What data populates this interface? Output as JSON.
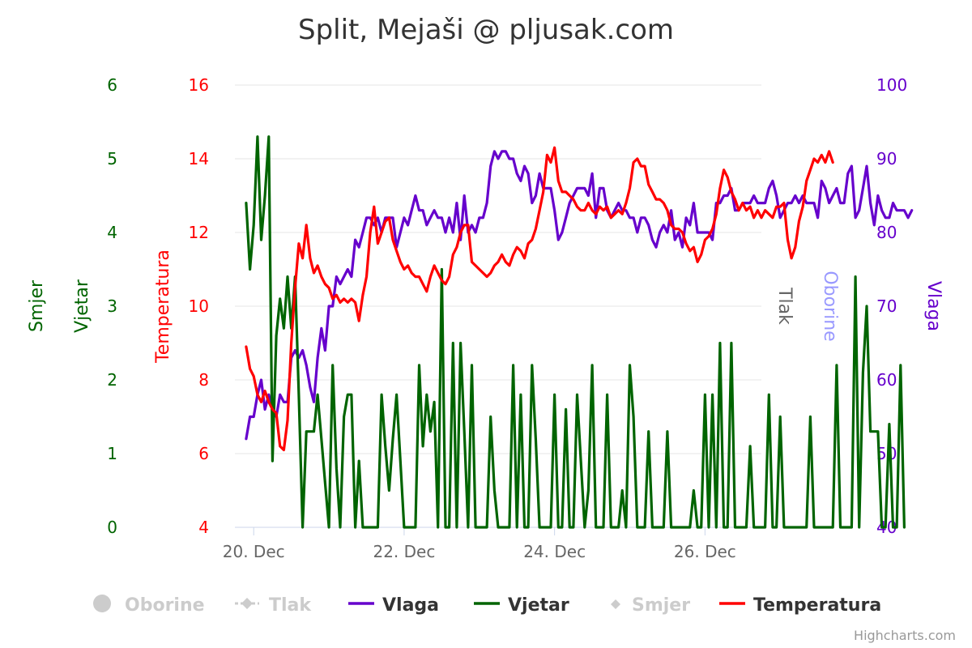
{
  "chart_data": {
    "type": "line",
    "title": "Split, Mejaši @ pljusak.com",
    "credits": "Highcharts.com",
    "x_tick_labels": [
      {
        "label": "20. Dec",
        "day": 20
      },
      {
        "label": "22. Dec",
        "day": 22
      },
      {
        "label": "24. Dec",
        "day": 24
      },
      {
        "label": "26. Dec",
        "day": 26
      }
    ],
    "x_range": [
      19.75,
      26.75
    ],
    "axes": {
      "smjer": {
        "title": "Smjer",
        "min": 0,
        "max": 6,
        "ticks": [
          0,
          1,
          2,
          3,
          4,
          5,
          6
        ],
        "color": "#006400",
        "side": "left"
      },
      "vjetar": {
        "title": "Vjetar",
        "color": "#006400",
        "side": "left"
      },
      "temperatura": {
        "title": "Temperatura",
        "min": 4,
        "max": 16,
        "ticks": [
          4,
          6,
          8,
          10,
          12,
          14,
          16
        ],
        "color": "#ff0000",
        "side": "left"
      },
      "tlak": {
        "title": "Tlak",
        "color": "#666666",
        "side": "right"
      },
      "oborine": {
        "title": "Oborine",
        "color": "#9999ff",
        "side": "right"
      },
      "vlaga": {
        "title": "Vlaga",
        "min": 40,
        "max": 100,
        "ticks": [
          40,
          50,
          60,
          70,
          80,
          90,
          100
        ],
        "color": "#6600cc",
        "side": "right"
      }
    },
    "legend": [
      {
        "name": "Oborine",
        "color": "#cccccc",
        "symbol": "circle",
        "visible": false
      },
      {
        "name": "Tlak",
        "color": "#cccccc",
        "symbol": "dash-diamond",
        "visible": false
      },
      {
        "name": "Vlaga",
        "color": "#6600cc",
        "symbol": "line",
        "visible": true
      },
      {
        "name": "Vjetar",
        "color": "#006400",
        "symbol": "line",
        "visible": true
      },
      {
        "name": "Smjer",
        "color": "#cccccc",
        "symbol": "diamond",
        "visible": false
      },
      {
        "name": "Temperatura",
        "color": "#ff0000",
        "symbol": "line",
        "visible": true
      }
    ],
    "legend_position": "bottom",
    "series": [
      {
        "name": "Vlaga",
        "axis": "vlaga",
        "color": "#6600cc",
        "x_start": 19.9,
        "x_step": 0.05,
        "values": [
          52,
          55,
          55,
          58,
          60,
          56,
          58,
          56,
          55,
          58,
          57,
          57,
          63,
          64,
          63,
          64,
          62,
          59,
          57,
          63,
          67,
          64,
          70,
          70,
          74,
          73,
          74,
          75,
          74,
          79,
          78,
          80,
          82,
          82,
          81,
          82,
          80,
          82,
          82,
          82,
          78,
          80,
          82,
          81,
          83,
          85,
          83,
          83,
          81,
          82,
          83,
          82,
          82,
          80,
          82,
          80,
          84,
          79,
          85,
          80,
          81,
          80,
          82,
          82,
          84,
          89,
          91,
          90,
          91,
          91,
          90,
          90,
          88,
          87,
          89,
          88,
          84,
          85,
          88,
          86,
          86,
          86,
          83,
          79,
          80,
          82,
          84,
          85,
          86,
          86,
          86,
          85,
          88,
          82,
          86,
          86,
          83,
          82,
          83,
          84,
          83,
          83,
          82,
          82,
          80,
          82,
          82,
          81,
          79,
          78,
          80,
          81,
          80,
          83,
          79,
          80,
          78,
          82,
          81,
          84,
          80,
          80,
          80,
          80,
          79,
          84,
          84,
          85,
          85,
          86,
          83,
          83,
          84,
          84,
          84,
          85,
          84,
          84,
          84,
          86,
          87,
          85,
          82,
          83,
          84,
          84,
          85,
          84,
          85,
          84,
          84,
          84,
          82,
          87,
          86,
          84,
          85,
          86,
          84,
          84,
          88,
          89,
          82,
          83,
          86,
          89,
          84,
          81,
          85,
          83,
          82,
          82,
          84,
          83,
          83,
          83,
          82,
          83
        ]
      },
      {
        "name": "Vjetar",
        "axis": "smjer",
        "color": "#006400",
        "x_start": 19.9,
        "x_step": 0.05,
        "values": [
          4.4,
          3.5,
          4.1,
          5.3,
          3.9,
          4.5,
          5.3,
          0.9,
          2.6,
          3.1,
          2.7,
          3.4,
          2.7,
          3.4,
          1.8,
          0,
          1.3,
          1.3,
          1.3,
          1.8,
          1.2,
          0.6,
          0,
          2.2,
          0.8,
          0,
          1.5,
          1.8,
          1.8,
          0,
          0.9,
          0,
          0,
          0,
          0,
          0,
          1.8,
          1.1,
          0.5,
          1.2,
          1.8,
          0.9,
          0,
          0,
          0,
          0,
          2.2,
          1.1,
          1.8,
          1.3,
          1.7,
          0,
          3.5,
          0,
          0,
          2.5,
          0,
          2.5,
          1.3,
          0,
          2.2,
          0,
          0,
          0,
          0,
          1.5,
          0.5,
          0,
          0,
          0,
          0,
          2.2,
          0,
          1.8,
          0,
          0,
          2.2,
          1.2,
          0,
          0,
          0,
          0,
          1.8,
          0,
          0,
          1.6,
          0,
          0,
          1.8,
          0.9,
          0,
          0.5,
          2.2,
          0,
          0,
          0,
          1.8,
          0,
          0,
          0,
          0.5,
          0,
          2.2,
          1.5,
          0,
          0,
          0,
          1.3,
          0,
          0,
          0,
          0,
          1.3,
          0,
          0,
          0,
          0,
          0,
          0,
          0.5,
          0,
          0,
          1.8,
          0,
          1.8,
          0,
          2.5,
          0,
          0,
          2.5,
          0,
          0,
          0,
          0,
          1.1,
          0,
          0,
          0,
          0,
          1.8,
          0,
          0,
          1.5,
          0,
          0,
          0,
          0,
          0,
          0,
          0,
          1.5,
          0,
          0,
          0,
          0,
          0,
          0,
          2.2,
          0,
          0,
          0,
          0,
          3.4,
          0,
          2.1,
          3.0,
          1.3,
          1.3,
          1.3,
          0,
          0,
          1.4,
          0,
          0,
          2.2,
          0
        ]
      },
      {
        "name": "Temperatura",
        "axis": "temperatura",
        "color": "#ff0000",
        "x_start": 19.9,
        "x_step": 0.05,
        "values": [
          8.9,
          8.3,
          8.1,
          7.6,
          7.4,
          7.7,
          7.4,
          7.2,
          7.1,
          6.2,
          6.1,
          6.9,
          9.0,
          10.5,
          11.7,
          11.3,
          12.2,
          11.3,
          10.9,
          11.1,
          10.8,
          10.6,
          10.5,
          10.2,
          10.3,
          10.1,
          10.2,
          10.1,
          10.2,
          10.1,
          9.6,
          10.3,
          10.8,
          12.0,
          12.7,
          11.7,
          12.0,
          12.3,
          12.4,
          11.8,
          11.5,
          11.2,
          11.0,
          11.1,
          10.9,
          10.8,
          10.8,
          10.6,
          10.4,
          10.8,
          11.1,
          10.9,
          10.7,
          10.6,
          10.8,
          11.4,
          11.6,
          12.0,
          12.2,
          12.2,
          11.2,
          11.1,
          11.0,
          10.9,
          10.8,
          10.9,
          11.1,
          11.2,
          11.4,
          11.2,
          11.1,
          11.4,
          11.6,
          11.5,
          11.3,
          11.7,
          11.8,
          12.1,
          12.6,
          13.1,
          14.1,
          13.9,
          14.3,
          13.4,
          13.1,
          13.1,
          13.0,
          12.9,
          12.7,
          12.6,
          12.6,
          12.8,
          12.6,
          12.5,
          12.7,
          12.6,
          12.7,
          12.4,
          12.5,
          12.6,
          12.5,
          12.8,
          13.2,
          13.9,
          14.0,
          13.8,
          13.8,
          13.3,
          13.1,
          12.9,
          12.9,
          12.8,
          12.6,
          12.2,
          12.1,
          12.1,
          12.0,
          11.7,
          11.5,
          11.6,
          11.2,
          11.4,
          11.8,
          11.9,
          12.1,
          12.5,
          13.2,
          13.7,
          13.5,
          13.1,
          12.9,
          12.6,
          12.8,
          12.6,
          12.7,
          12.4,
          12.6,
          12.4,
          12.6,
          12.5,
          12.4,
          12.7,
          12.7,
          12.8,
          11.8,
          11.3,
          11.6,
          12.3,
          12.7,
          13.4,
          13.7,
          14.0,
          13.9,
          14.1,
          13.9,
          14.2,
          13.9
        ]
      }
    ]
  }
}
